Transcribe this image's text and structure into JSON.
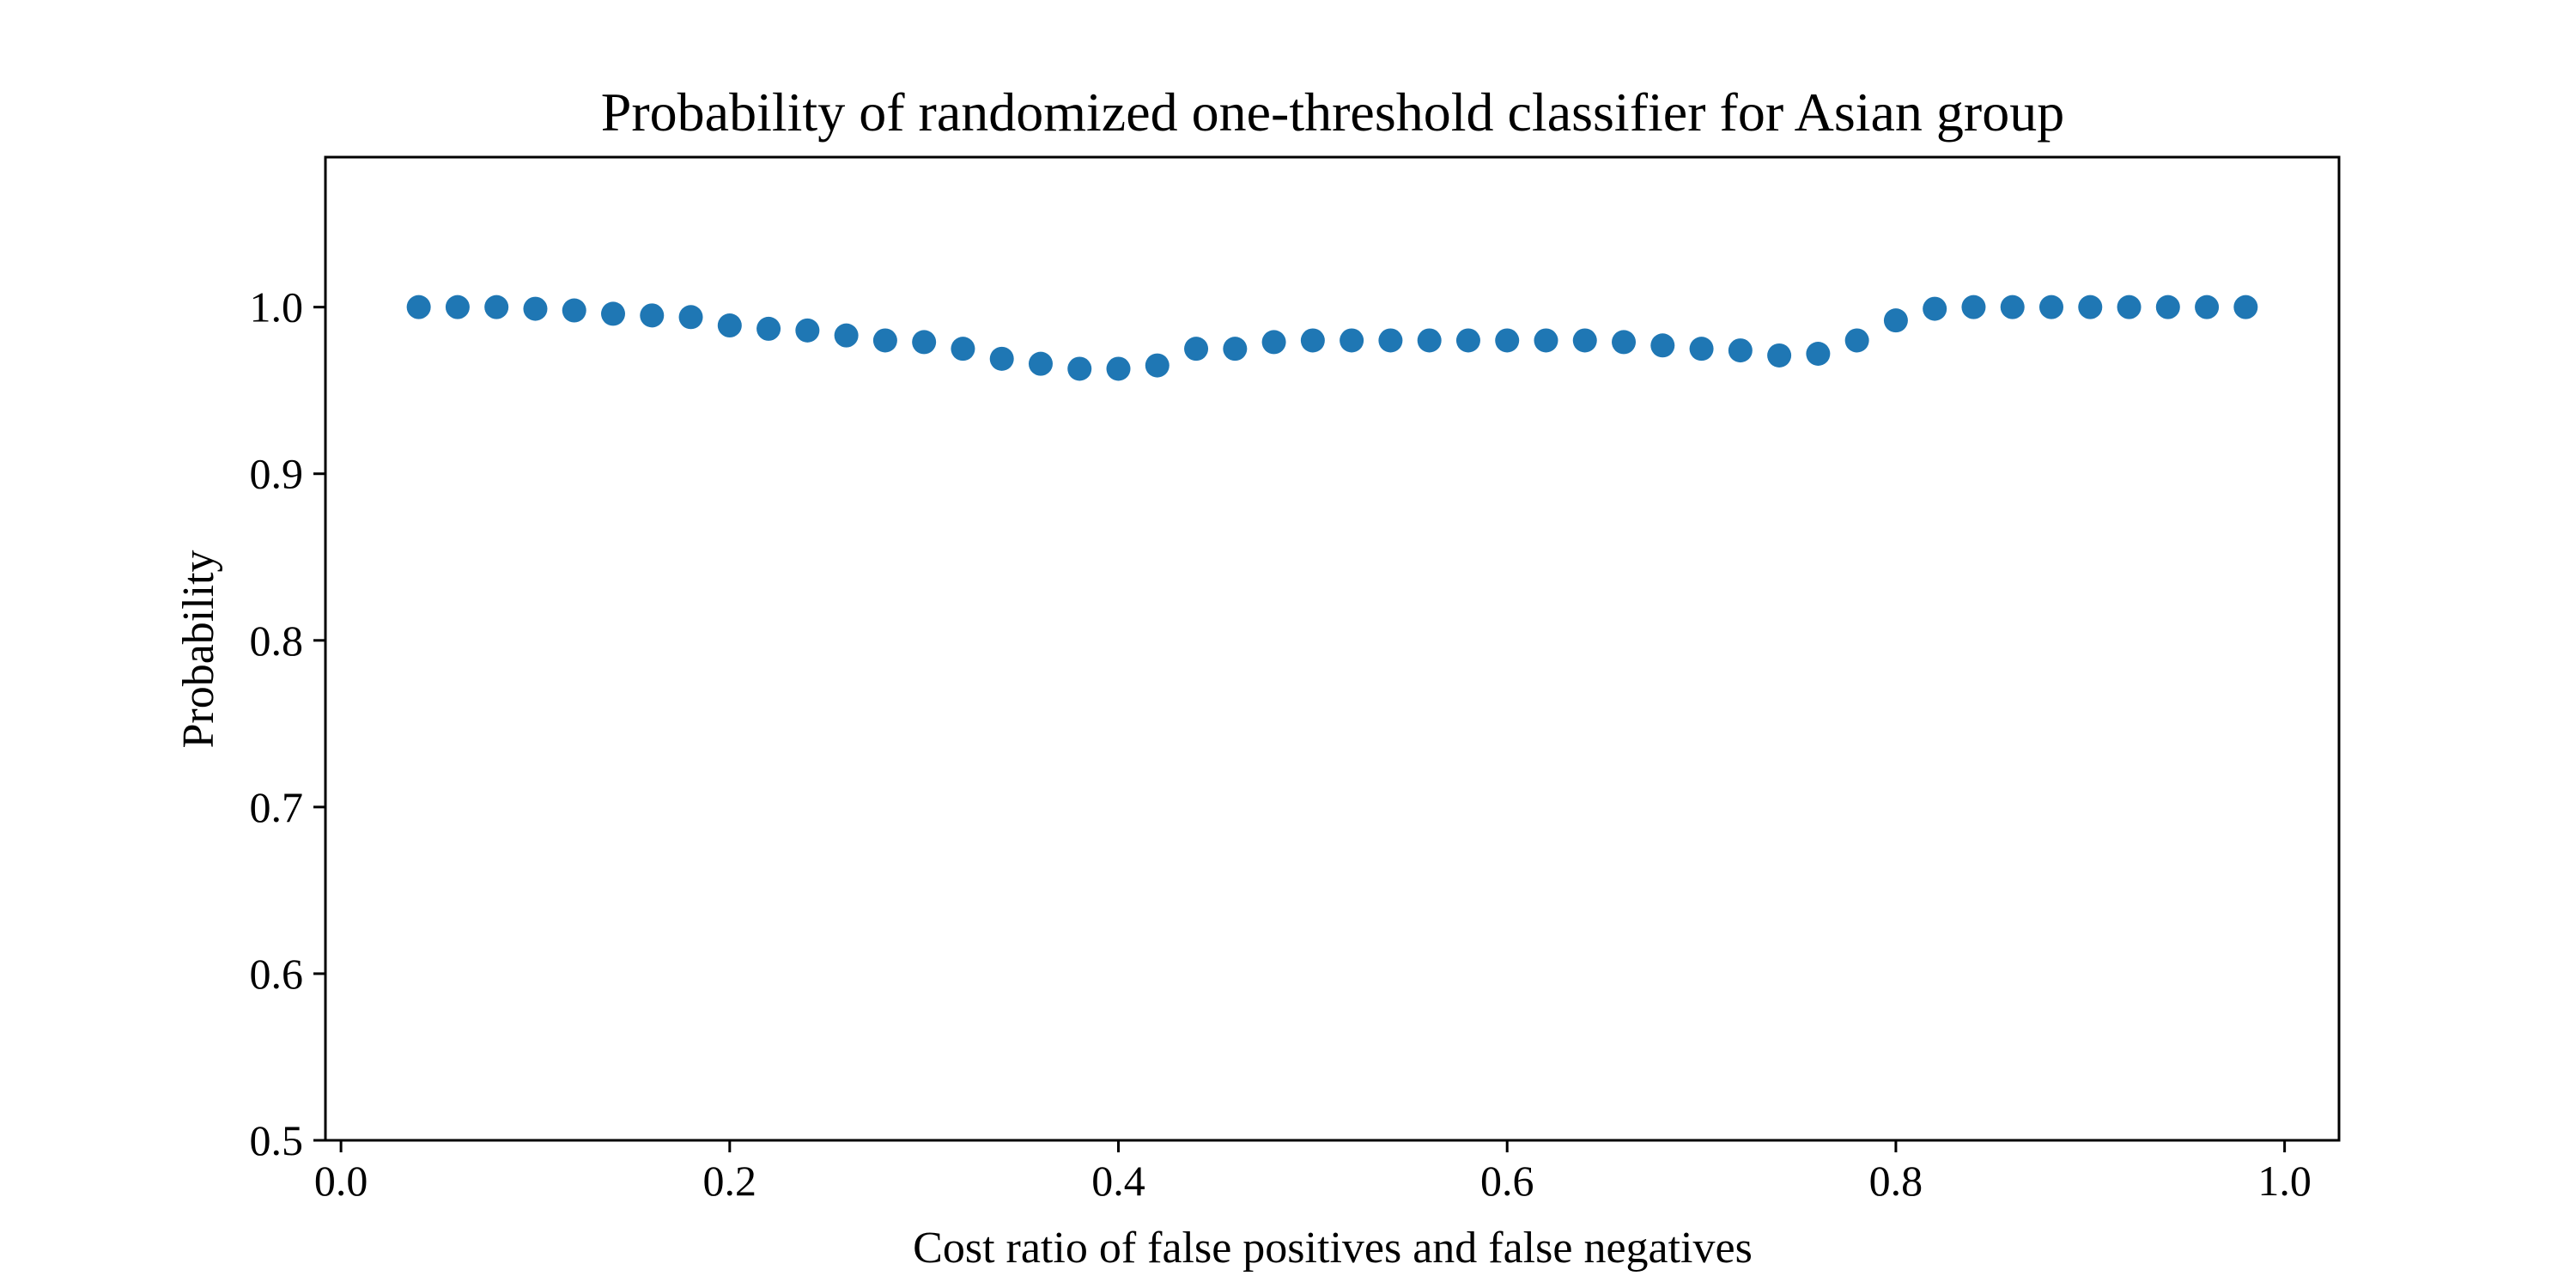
{
  "chart_data": {
    "type": "scatter",
    "title": "Probability of randomized one-threshold classifier for Asian group",
    "xlabel": "Cost ratio of false positives and false negatives",
    "ylabel": "Probability",
    "xlim": [
      -0.008,
      1.028
    ],
    "ylim": [
      0.5,
      1.09
    ],
    "xticks": [
      0.0,
      0.2,
      0.4,
      0.6,
      0.8,
      1.0
    ],
    "xtick_labels": [
      "0.0",
      "0.2",
      "0.4",
      "0.6",
      "0.8",
      "1.0"
    ],
    "yticks": [
      0.5,
      0.6,
      0.7,
      0.8,
      0.9,
      1.0
    ],
    "ytick_labels": [
      "0.5",
      "0.6",
      "0.7",
      "0.8",
      "0.9",
      "1.0"
    ],
    "grid": false,
    "marker_color": "#1f77b4",
    "series": [
      {
        "x": [
          0.04,
          0.06,
          0.08,
          0.1,
          0.12,
          0.14,
          0.16,
          0.18,
          0.2,
          0.22,
          0.24,
          0.26,
          0.28,
          0.3,
          0.32,
          0.34,
          0.36,
          0.38,
          0.4,
          0.42,
          0.44,
          0.46,
          0.48,
          0.5,
          0.52,
          0.54,
          0.56,
          0.58,
          0.6,
          0.62,
          0.64,
          0.66,
          0.68,
          0.7,
          0.72,
          0.74,
          0.76,
          0.78,
          0.8,
          0.82,
          0.84,
          0.86,
          0.88,
          0.9,
          0.92,
          0.94,
          0.96,
          0.98
        ],
        "y": [
          1.0,
          1.0,
          1.0,
          0.999,
          0.998,
          0.996,
          0.995,
          0.994,
          0.989,
          0.987,
          0.986,
          0.983,
          0.98,
          0.979,
          0.975,
          0.969,
          0.966,
          0.963,
          0.963,
          0.965,
          0.975,
          0.975,
          0.979,
          0.98,
          0.98,
          0.98,
          0.98,
          0.98,
          0.98,
          0.98,
          0.98,
          0.979,
          0.977,
          0.975,
          0.974,
          0.971,
          0.972,
          0.98,
          0.992,
          0.999,
          1.0,
          1.0,
          1.0,
          1.0,
          1.0,
          1.0,
          1.0,
          1.0
        ]
      }
    ]
  }
}
